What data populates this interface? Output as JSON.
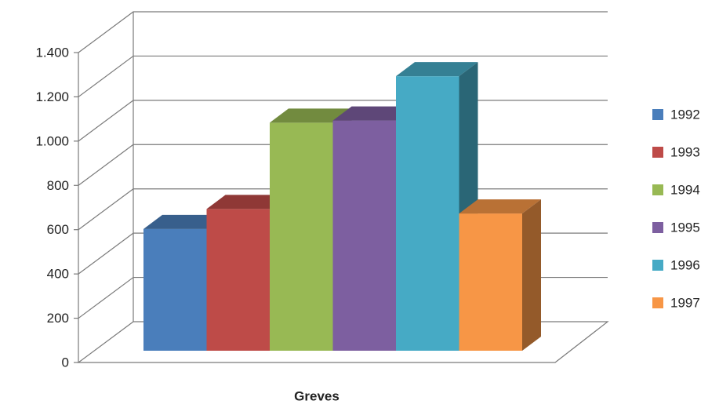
{
  "chart_data": {
    "type": "bar3d",
    "categories": [
      "Greves"
    ],
    "series": [
      {
        "name": "1992",
        "color": "#4a7ebb",
        "values": [
          550
        ]
      },
      {
        "name": "1993",
        "color": "#be4b48",
        "values": [
          640
        ]
      },
      {
        "name": "1994",
        "color": "#98b954",
        "values": [
          1030
        ]
      },
      {
        "name": "1995",
        "color": "#7d5fa0",
        "values": [
          1040
        ]
      },
      {
        "name": "1996",
        "color": "#46aac5",
        "values": [
          1240
        ]
      },
      {
        "name": "1997",
        "color": "#f79646",
        "values": [
          620
        ]
      }
    ],
    "ylim": [
      0,
      1400
    ],
    "yticks": [
      0,
      200,
      400,
      600,
      800,
      {
        "value": 1000,
        "label": "1.000"
      },
      {
        "value": 1200,
        "label": "1.200"
      },
      {
        "value": 1400,
        "label": "1.400"
      }
    ],
    "grid": true,
    "legend": "right"
  }
}
